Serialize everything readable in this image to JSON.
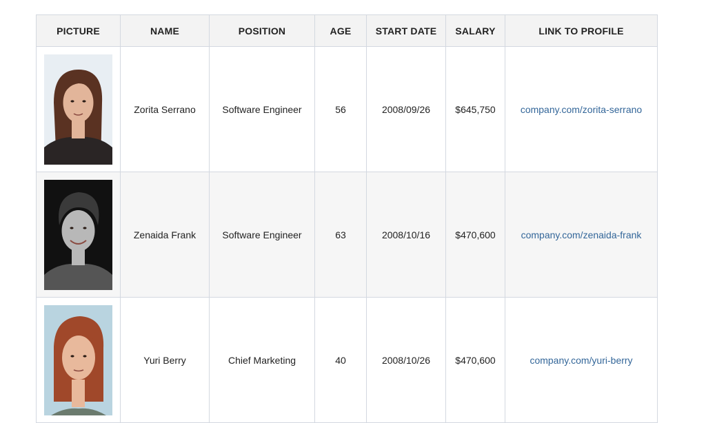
{
  "table": {
    "headers": {
      "picture": "PICTURE",
      "name": "NAME",
      "position": "POSITION",
      "age": "AGE",
      "start_date": "START DATE",
      "salary": "SALARY",
      "link": "LINK TO PROFILE"
    },
    "rows": [
      {
        "name": "Zorita Serrano",
        "position": "Software Engineer",
        "age": "56",
        "start_date": "2008/09/26",
        "salary": "$645,750",
        "link": "company.com/zorita-serrano",
        "avatar_bg": "#e8eef3",
        "hair": "#5a3222",
        "skin": "#e2b59a",
        "clothes": "#2a2525"
      },
      {
        "name": "Zenaida Frank",
        "position": "Software Engineer",
        "age": "63",
        "start_date": "2008/10/16",
        "salary": "$470,600",
        "link": "company.com/zenaida-frank",
        "avatar_bg": "#111111",
        "hair": "#3a3a3a",
        "skin": "#b8b8b8",
        "clothes": "#555555"
      },
      {
        "name": "Yuri Berry",
        "position": "Chief Marketing",
        "age": "40",
        "start_date": "2008/10/26",
        "salary": "$470,600",
        "link": "company.com/yuri-berry",
        "avatar_bg": "#b9d4e0",
        "hair": "#a0482a",
        "skin": "#e8b99c",
        "clothes": "#6b7b6e"
      }
    ]
  }
}
